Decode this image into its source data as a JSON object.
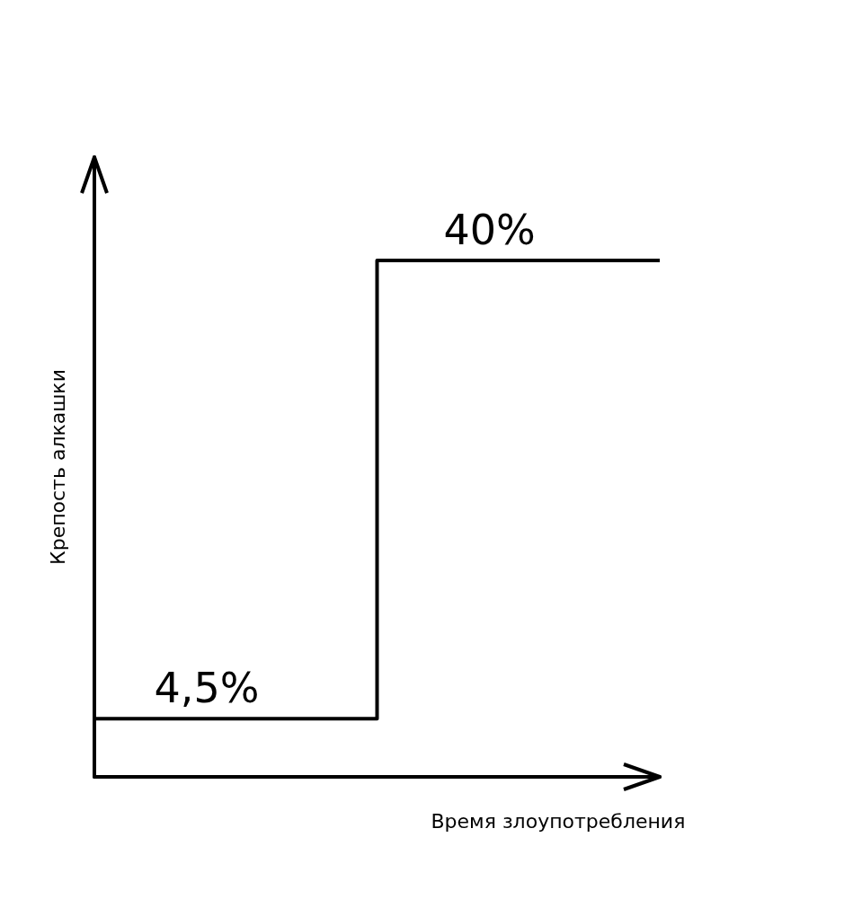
{
  "chart_data": {
    "type": "step",
    "xlabel": "Время злоупотребления",
    "ylabel": "Крепость алкашки",
    "categories": [
      null,
      null,
      null
    ],
    "values": [
      4.5,
      40,
      40
    ],
    "value_labels": [
      "4,5%",
      "40%",
      null
    ],
    "color": "#000000",
    "marker": "none",
    "grid": false
  }
}
